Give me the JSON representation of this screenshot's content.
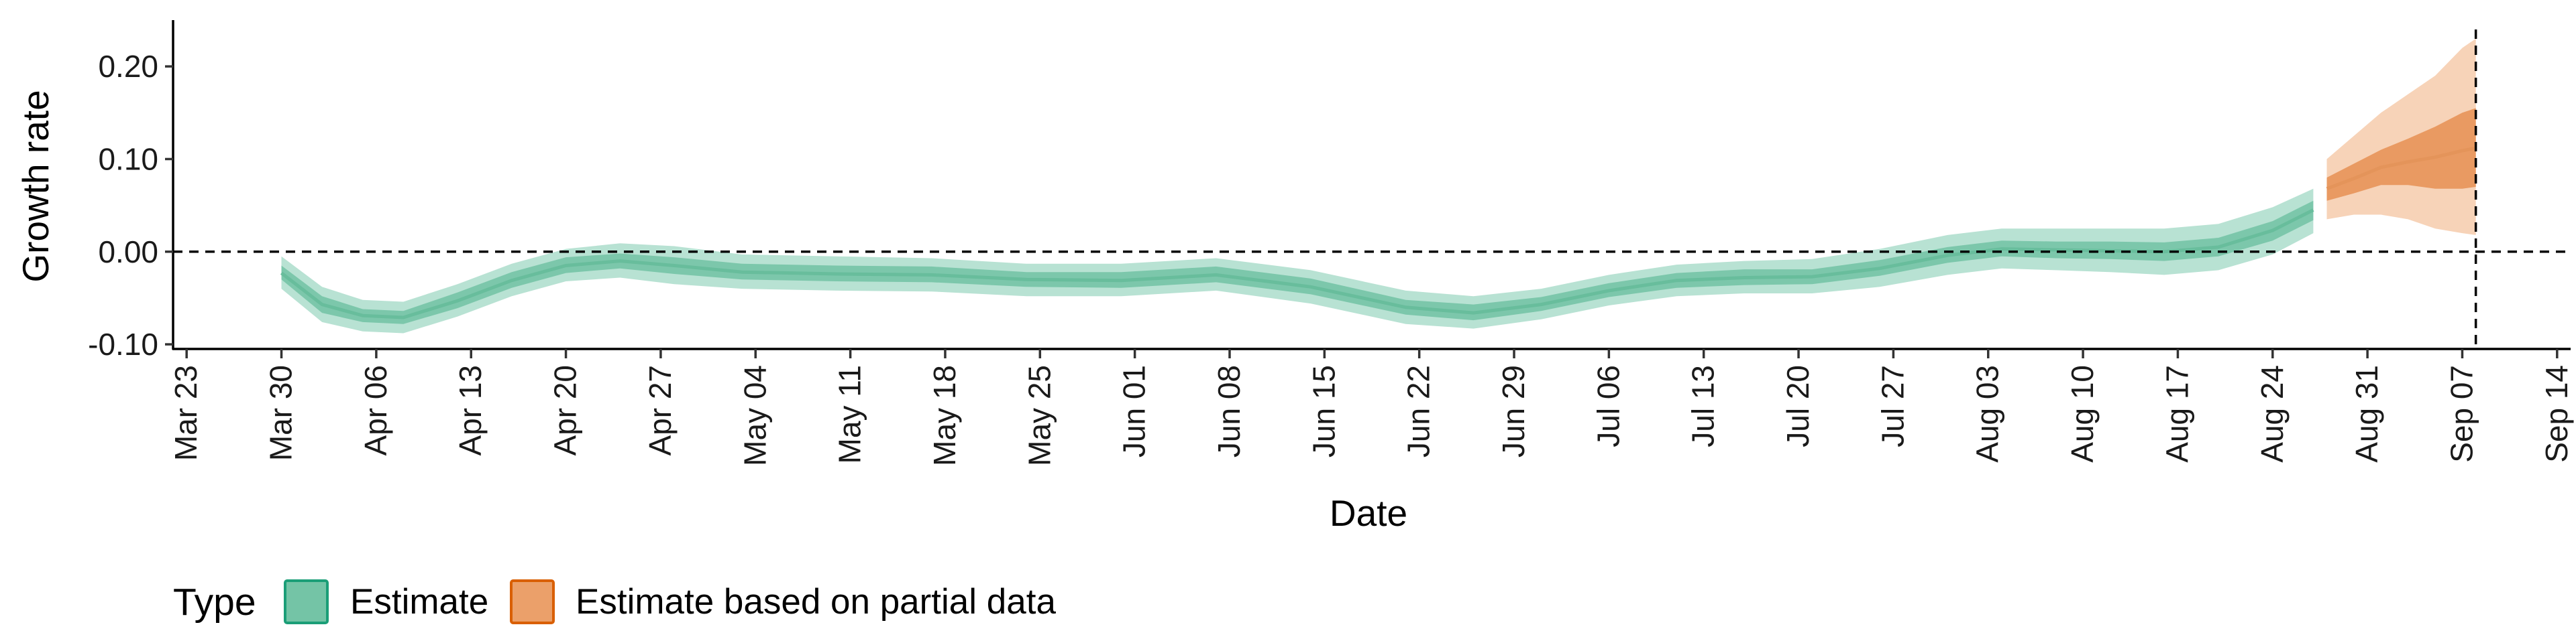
{
  "chart_data": {
    "type": "area",
    "xlabel": "Date",
    "ylabel": "Growth rate",
    "x_ticks": [
      "Mar 23",
      "Mar 30",
      "Apr 06",
      "Apr 13",
      "Apr 20",
      "Apr 27",
      "May 04",
      "May 11",
      "May 18",
      "May 25",
      "Jun 01",
      "Jun 08",
      "Jun 15",
      "Jun 22",
      "Jun 29",
      "Jul 06",
      "Jul 13",
      "Jul 20",
      "Jul 27",
      "Aug 03",
      "Aug 10",
      "Aug 17",
      "Aug 24",
      "Aug 31",
      "Sep 07",
      "Sep 14"
    ],
    "y_ticks": [
      "-0.10",
      "0.00",
      "0.10",
      "0.20"
    ],
    "ylim": [
      -0.105,
      0.25
    ],
    "xlim": [
      "2020-03-22",
      "2020-09-15"
    ],
    "reference_lines": {
      "y": 0.0,
      "x": "2020-09-08"
    },
    "legend": {
      "title": "Type",
      "position": "bottom-left",
      "items": [
        {
          "label": "Estimate",
          "fill": "#74c4a6",
          "stroke": "#1b9e77"
        },
        {
          "label": "Estimate based on partial data",
          "fill": "#eba06a",
          "stroke": "#d95f02"
        }
      ]
    },
    "series": [
      {
        "name": "Estimate",
        "colors": {
          "outer": "#b8e2d3",
          "inner": "#7cc7ab",
          "median": "#68bd9c"
        },
        "x": [
          "2020-03-30",
          "2020-04-02",
          "2020-04-05",
          "2020-04-08",
          "2020-04-12",
          "2020-04-16",
          "2020-04-20",
          "2020-04-24",
          "2020-04-28",
          "2020-05-03",
          "2020-05-10",
          "2020-05-17",
          "2020-05-24",
          "2020-05-31",
          "2020-06-07",
          "2020-06-14",
          "2020-06-21",
          "2020-06-26",
          "2020-07-01",
          "2020-07-06",
          "2020-07-11",
          "2020-07-16",
          "2020-07-21",
          "2020-07-26",
          "2020-07-31",
          "2020-08-04",
          "2020-08-08",
          "2020-08-12",
          "2020-08-16",
          "2020-08-20",
          "2020-08-24",
          "2020-08-27"
        ],
        "upper": [
          -0.005,
          -0.038,
          -0.052,
          -0.054,
          -0.035,
          -0.013,
          0.003,
          0.009,
          0.006,
          -0.003,
          -0.005,
          -0.007,
          -0.013,
          -0.013,
          -0.007,
          -0.02,
          -0.042,
          -0.048,
          -0.04,
          -0.025,
          -0.014,
          -0.01,
          -0.008,
          0.003,
          0.018,
          0.025,
          0.025,
          0.025,
          0.025,
          0.03,
          0.048,
          0.068
        ],
        "lower": [
          -0.04,
          -0.076,
          -0.086,
          -0.088,
          -0.07,
          -0.048,
          -0.032,
          -0.028,
          -0.035,
          -0.04,
          -0.042,
          -0.043,
          -0.048,
          -0.048,
          -0.042,
          -0.056,
          -0.078,
          -0.083,
          -0.073,
          -0.058,
          -0.048,
          -0.045,
          -0.045,
          -0.038,
          -0.025,
          -0.018,
          -0.02,
          -0.022,
          -0.025,
          -0.02,
          -0.003,
          0.02
        ],
        "inner_upper": [
          -0.015,
          -0.048,
          -0.062,
          -0.064,
          -0.044,
          -0.022,
          -0.006,
          -0.002,
          -0.006,
          -0.013,
          -0.015,
          -0.016,
          -0.022,
          -0.022,
          -0.016,
          -0.029,
          -0.052,
          -0.057,
          -0.049,
          -0.034,
          -0.023,
          -0.019,
          -0.019,
          -0.009,
          0.005,
          0.012,
          0.011,
          0.011,
          0.01,
          0.015,
          0.033,
          0.055
        ],
        "inner_lower": [
          -0.03,
          -0.066,
          -0.076,
          -0.078,
          -0.061,
          -0.039,
          -0.023,
          -0.018,
          -0.024,
          -0.03,
          -0.032,
          -0.033,
          -0.038,
          -0.039,
          -0.033,
          -0.046,
          -0.068,
          -0.074,
          -0.064,
          -0.049,
          -0.039,
          -0.036,
          -0.035,
          -0.026,
          -0.012,
          -0.005,
          -0.007,
          -0.008,
          -0.01,
          -0.005,
          0.012,
          0.034
        ],
        "median": [
          -0.023,
          -0.057,
          -0.069,
          -0.071,
          -0.053,
          -0.031,
          -0.015,
          -0.01,
          -0.015,
          -0.022,
          -0.024,
          -0.025,
          -0.03,
          -0.031,
          -0.025,
          -0.038,
          -0.06,
          -0.066,
          -0.057,
          -0.042,
          -0.031,
          -0.028,
          -0.027,
          -0.018,
          -0.004,
          0.003,
          0.002,
          0.001,
          0.0,
          0.005,
          0.023,
          0.045
        ]
      },
      {
        "name": "Estimate based on partial data",
        "colors": {
          "outer": "#f7d3b8",
          "inner": "#e99a62",
          "median": "#e4945a"
        },
        "x": [
          "2020-08-28",
          "2020-08-30",
          "2020-09-01",
          "2020-09-03",
          "2020-09-05",
          "2020-09-07",
          "2020-09-08"
        ],
        "upper": [
          0.1,
          0.125,
          0.15,
          0.17,
          0.19,
          0.22,
          0.23
        ],
        "lower": [
          0.035,
          0.04,
          0.04,
          0.035,
          0.025,
          0.02,
          0.018
        ],
        "inner_upper": [
          0.08,
          0.095,
          0.11,
          0.122,
          0.135,
          0.15,
          0.155
        ],
        "inner_lower": [
          0.055,
          0.063,
          0.072,
          0.072,
          0.068,
          0.068,
          0.07
        ],
        "median": [
          0.068,
          0.079,
          0.091,
          0.097,
          0.102,
          0.109,
          0.112
        ]
      }
    ]
  }
}
